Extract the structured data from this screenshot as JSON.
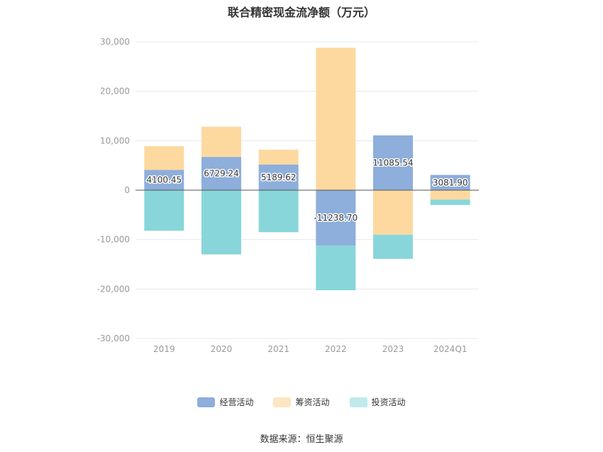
{
  "chart_data": {
    "type": "bar",
    "stacked": true,
    "title": "联合精密现金流净额（万元）",
    "categories": [
      "2019",
      "2020",
      "2021",
      "2022",
      "2023",
      "2024Q1"
    ],
    "ylim": [
      -30000,
      30000
    ],
    "yticks": [
      "30,000",
      "20,000",
      "10,000",
      "0",
      "-10,000",
      "-20,000",
      "-30,000"
    ],
    "ytick_values": [
      30000,
      20000,
      10000,
      0,
      -10000,
      -20000,
      -30000
    ],
    "grid": true,
    "legend_position": "bottom",
    "series": [
      {
        "name": "经营活动",
        "color": "#8eaedb",
        "values": [
          4100.45,
          6729.24,
          5189.62,
          -11238.7,
          11085.54,
          3081.9
        ]
      },
      {
        "name": "筹资活动",
        "color": "#fdd9a0",
        "values": [
          4800,
          6100,
          3000,
          28800,
          -9000,
          -1900
        ]
      },
      {
        "name": "投资活动",
        "color": "#88d6d9",
        "values": [
          -8200,
          -13000,
          -8500,
          -9000,
          -4900,
          -1100
        ]
      }
    ],
    "data_labels": [
      "4100.45",
      "6729.24",
      "5189.62",
      "-11238.70",
      "11085.54",
      "3081.90"
    ]
  },
  "legend": {
    "items": [
      {
        "label": "经营活动",
        "color": "#8eaedb"
      },
      {
        "label": "筹资活动",
        "color": "#fde6c2"
      },
      {
        "label": "投资活动",
        "color": "#bfe9ea"
      }
    ]
  },
  "source": "数据来源：恒生聚源"
}
